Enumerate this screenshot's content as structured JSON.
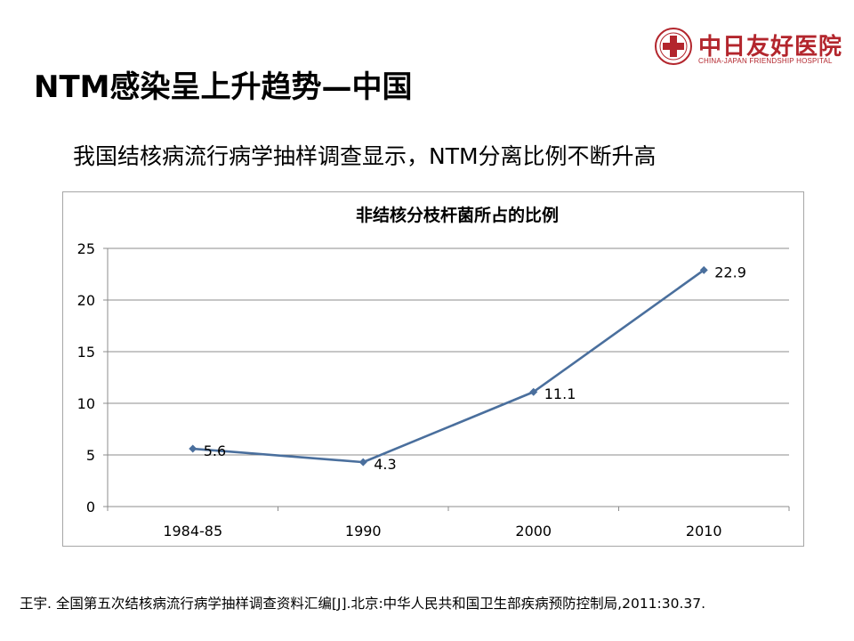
{
  "slide": {
    "title": "NTM感染呈上升趋势—中国",
    "subtitle": "我国结核病流行病学抽样调查显示，NTM分离比例不断升高",
    "citation": "王宇. 全国第五次结核病流行病学抽样调查资料汇编[J].北京:中华人民共和国卫生部疾病预防控制局,2011:30.37."
  },
  "logo": {
    "name_cn": "中日友好医院",
    "name_en": "CHINA-JAPAN FRIENDSHIP HOSPITAL",
    "color": "#b3262d"
  },
  "chart_data": {
    "type": "line",
    "title": "非结核分枝杆菌所占的比例",
    "categories": [
      "1984-85",
      "1990",
      "2000",
      "2010"
    ],
    "series": [
      {
        "values": [
          5.6,
          4.3,
          11.1,
          22.9
        ],
        "color": "#4a6f9d"
      }
    ],
    "data_labels": [
      "5.6",
      "4.3",
      "11.1",
      "22.9"
    ],
    "ylim": [
      0,
      25
    ],
    "yticks": [
      0,
      5,
      10,
      15,
      20,
      25
    ],
    "grid": true,
    "legend": "none"
  }
}
